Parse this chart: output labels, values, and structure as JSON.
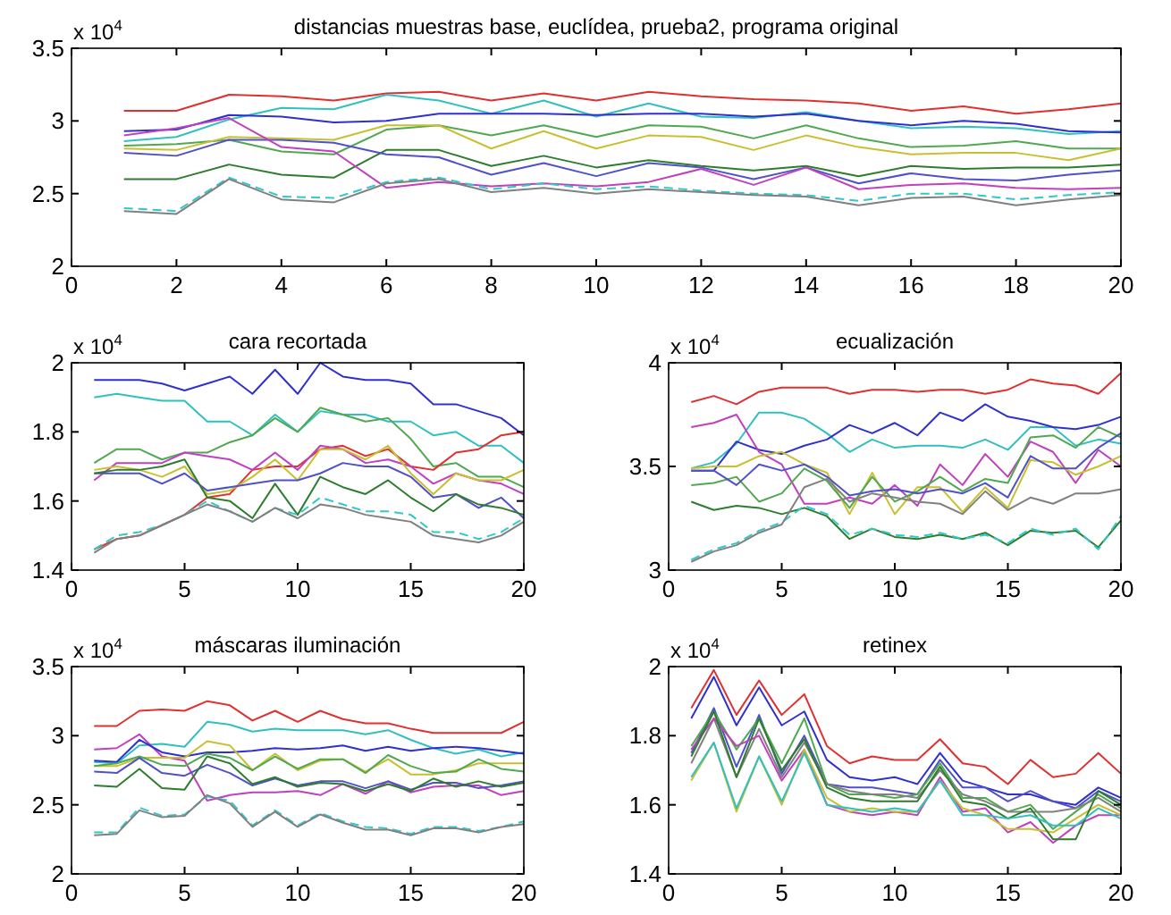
{
  "chart_data": [
    {
      "type": "line",
      "title": "distancias muestras base, euclídea, prueba2, programa original",
      "annotations": [
        "x 10$^{4}$"
      ],
      "x": [
        1,
        2,
        3,
        4,
        5,
        6,
        7,
        8,
        9,
        10,
        11,
        12,
        13,
        14,
        15,
        16,
        17,
        18,
        19,
        20
      ],
      "xlim": [
        0,
        20
      ],
      "xticks": [
        0,
        2,
        4,
        6,
        8,
        10,
        12,
        14,
        16,
        18,
        20
      ],
      "ylim": [
        2,
        3.5
      ],
      "yticks": [
        2,
        2.5,
        3,
        3.5
      ],
      "series": [
        {
          "color": "#e03030",
          "values": [
            3.07,
            3.07,
            3.18,
            3.17,
            3.14,
            3.19,
            3.2,
            3.14,
            3.19,
            3.14,
            3.2,
            3.17,
            3.15,
            3.14,
            3.12,
            3.07,
            3.1,
            3.05,
            3.08,
            3.12
          ]
        },
        {
          "color": "#30c0c0",
          "values": [
            2.86,
            2.89,
            3.01,
            3.09,
            3.08,
            3.18,
            3.14,
            3.05,
            3.14,
            3.03,
            3.12,
            3.03,
            3.02,
            3.06,
            3.0,
            2.95,
            2.96,
            2.95,
            2.91,
            2.93
          ]
        },
        {
          "color": "#3030d0",
          "values": [
            2.93,
            2.94,
            3.04,
            3.03,
            2.99,
            3.0,
            3.05,
            3.05,
            3.05,
            3.04,
            3.05,
            3.05,
            3.03,
            3.05,
            3.0,
            2.97,
            3.0,
            2.98,
            2.93,
            2.92
          ]
        },
        {
          "color": "#50a850",
          "values": [
            2.83,
            2.84,
            2.87,
            2.79,
            2.77,
            2.94,
            2.97,
            2.9,
            2.97,
            2.89,
            2.97,
            2.96,
            2.88,
            2.97,
            2.88,
            2.82,
            2.83,
            2.86,
            2.81,
            2.81
          ]
        },
        {
          "color": "#c8c030",
          "values": [
            2.81,
            2.8,
            2.89,
            2.88,
            2.87,
            2.97,
            2.97,
            2.81,
            2.93,
            2.81,
            2.9,
            2.89,
            2.8,
            2.9,
            2.82,
            2.77,
            2.78,
            2.78,
            2.73,
            2.81
          ]
        },
        {
          "color": "#2e7d2e",
          "values": [
            2.6,
            2.6,
            2.7,
            2.63,
            2.61,
            2.8,
            2.8,
            2.69,
            2.76,
            2.68,
            2.73,
            2.69,
            2.66,
            2.69,
            2.62,
            2.69,
            2.67,
            2.68,
            2.68,
            2.7
          ]
        },
        {
          "color": "#5050c8",
          "values": [
            2.78,
            2.76,
            2.87,
            2.87,
            2.85,
            2.77,
            2.75,
            2.63,
            2.71,
            2.62,
            2.71,
            2.68,
            2.6,
            2.68,
            2.57,
            2.64,
            2.6,
            2.59,
            2.63,
            2.66
          ]
        },
        {
          "color": "#c040c0",
          "values": [
            2.9,
            2.95,
            3.02,
            2.82,
            2.79,
            2.54,
            2.58,
            2.55,
            2.57,
            2.55,
            2.58,
            2.67,
            2.56,
            2.68,
            2.53,
            2.56,
            2.57,
            2.54,
            2.53,
            2.54
          ]
        },
        {
          "color": "#30c8c8",
          "line_style": "dashed",
          "values": [
            2.4,
            2.38,
            2.61,
            2.48,
            2.47,
            2.58,
            2.61,
            2.53,
            2.57,
            2.53,
            2.55,
            2.52,
            2.5,
            2.49,
            2.45,
            2.5,
            2.5,
            2.46,
            2.49,
            2.51
          ]
        },
        {
          "color": "#808080",
          "values": [
            2.38,
            2.36,
            2.6,
            2.46,
            2.44,
            2.57,
            2.6,
            2.51,
            2.54,
            2.5,
            2.53,
            2.51,
            2.49,
            2.48,
            2.42,
            2.47,
            2.48,
            2.42,
            2.46,
            2.49
          ]
        }
      ]
    },
    {
      "type": "line",
      "title": "cara recortada",
      "annotations": [
        "x 10$^{4}$"
      ],
      "x": [
        1,
        2,
        3,
        4,
        5,
        6,
        7,
        8,
        9,
        10,
        11,
        12,
        13,
        14,
        15,
        16,
        17,
        18,
        19,
        20
      ],
      "xlim": [
        0,
        20
      ],
      "xticks": [
        0,
        5,
        10,
        15,
        20
      ],
      "ylim": [
        1.4,
        2
      ],
      "yticks": [
        1.4,
        1.6,
        1.8,
        2
      ],
      "series": [
        {
          "color": "#3030d0",
          "values": [
            1.95,
            1.95,
            1.95,
            1.94,
            1.92,
            1.94,
            1.96,
            1.91,
            1.98,
            1.91,
            2.0,
            1.96,
            1.95,
            1.95,
            1.94,
            1.88,
            1.88,
            1.86,
            1.84,
            1.79
          ]
        },
        {
          "color": "#30c0c0",
          "values": [
            1.9,
            1.91,
            1.9,
            1.89,
            1.89,
            1.83,
            1.83,
            1.79,
            1.85,
            1.8,
            1.86,
            1.85,
            1.85,
            1.83,
            1.83,
            1.79,
            1.8,
            1.76,
            1.76,
            1.71
          ]
        },
        {
          "color": "#50a850",
          "values": [
            1.71,
            1.75,
            1.75,
            1.72,
            1.74,
            1.74,
            1.77,
            1.79,
            1.84,
            1.8,
            1.87,
            1.85,
            1.83,
            1.84,
            1.78,
            1.7,
            1.71,
            1.67,
            1.67,
            1.64
          ]
        },
        {
          "color": "#e03030",
          "values": [
            1.46,
            1.49,
            1.5,
            1.53,
            1.56,
            1.61,
            1.62,
            1.69,
            1.7,
            1.7,
            1.75,
            1.76,
            1.73,
            1.75,
            1.7,
            1.69,
            1.74,
            1.75,
            1.79,
            1.8
          ]
        },
        {
          "color": "#c040c0",
          "values": [
            1.66,
            1.71,
            1.71,
            1.71,
            1.74,
            1.73,
            1.72,
            1.69,
            1.74,
            1.69,
            1.76,
            1.75,
            1.71,
            1.72,
            1.7,
            1.65,
            1.68,
            1.66,
            1.65,
            1.62
          ]
        },
        {
          "color": "#c8c030",
          "values": [
            1.69,
            1.7,
            1.69,
            1.67,
            1.7,
            1.62,
            1.63,
            1.67,
            1.72,
            1.66,
            1.75,
            1.75,
            1.72,
            1.76,
            1.68,
            1.62,
            1.68,
            1.66,
            1.66,
            1.69
          ]
        },
        {
          "color": "#5050c8",
          "values": [
            1.68,
            1.68,
            1.68,
            1.65,
            1.68,
            1.63,
            1.64,
            1.65,
            1.66,
            1.66,
            1.68,
            1.71,
            1.7,
            1.7,
            1.67,
            1.61,
            1.62,
            1.58,
            1.61,
            1.55
          ]
        },
        {
          "color": "#2e7d2e",
          "values": [
            1.68,
            1.69,
            1.69,
            1.7,
            1.72,
            1.61,
            1.6,
            1.55,
            1.65,
            1.56,
            1.67,
            1.64,
            1.62,
            1.66,
            1.61,
            1.57,
            1.62,
            1.59,
            1.58,
            1.56
          ]
        },
        {
          "color": "#30c8c8",
          "line_style": "dashed",
          "values": [
            1.46,
            1.5,
            1.51,
            1.53,
            1.56,
            1.6,
            1.57,
            1.54,
            1.58,
            1.56,
            1.61,
            1.59,
            1.57,
            1.57,
            1.56,
            1.51,
            1.51,
            1.49,
            1.51,
            1.55
          ]
        },
        {
          "color": "#808080",
          "values": [
            1.45,
            1.49,
            1.5,
            1.53,
            1.56,
            1.59,
            1.57,
            1.54,
            1.58,
            1.55,
            1.59,
            1.58,
            1.56,
            1.55,
            1.54,
            1.5,
            1.49,
            1.48,
            1.5,
            1.54
          ]
        }
      ]
    },
    {
      "type": "line",
      "title": "ecualización",
      "annotations": [
        "x 10$^{4}$"
      ],
      "x": [
        1,
        2,
        3,
        4,
        5,
        6,
        7,
        8,
        9,
        10,
        11,
        12,
        13,
        14,
        15,
        16,
        17,
        18,
        19,
        20
      ],
      "xlim": [
        0,
        20
      ],
      "xticks": [
        0,
        5,
        10,
        15,
        20
      ],
      "ylim": [
        3,
        4
      ],
      "yticks": [
        3,
        3.5,
        4
      ],
      "series": [
        {
          "color": "#e03030",
          "values": [
            3.81,
            3.84,
            3.8,
            3.86,
            3.88,
            3.88,
            3.88,
            3.85,
            3.87,
            3.87,
            3.86,
            3.87,
            3.87,
            3.85,
            3.87,
            3.92,
            3.9,
            3.89,
            3.85,
            3.95
          ]
        },
        {
          "color": "#30c0c0",
          "values": [
            3.49,
            3.52,
            3.61,
            3.76,
            3.76,
            3.73,
            3.66,
            3.57,
            3.63,
            3.59,
            3.6,
            3.6,
            3.59,
            3.63,
            3.58,
            3.69,
            3.69,
            3.6,
            3.63,
            3.61
          ]
        },
        {
          "color": "#3030d0",
          "values": [
            3.48,
            3.48,
            3.62,
            3.58,
            3.56,
            3.6,
            3.63,
            3.7,
            3.66,
            3.71,
            3.65,
            3.76,
            3.72,
            3.8,
            3.74,
            3.72,
            3.69,
            3.68,
            3.7,
            3.74
          ]
        },
        {
          "color": "#c040c0",
          "values": [
            3.69,
            3.71,
            3.75,
            3.57,
            3.51,
            3.32,
            3.32,
            3.35,
            3.32,
            3.41,
            3.31,
            3.51,
            3.41,
            3.56,
            3.45,
            3.62,
            3.57,
            3.42,
            3.58,
            3.5
          ]
        },
        {
          "color": "#c8c030",
          "values": [
            3.49,
            3.5,
            3.5,
            3.55,
            3.57,
            3.51,
            3.47,
            3.27,
            3.47,
            3.27,
            3.4,
            3.4,
            3.28,
            3.4,
            3.3,
            3.53,
            3.52,
            3.46,
            3.5,
            3.55
          ]
        },
        {
          "color": "#50a850",
          "values": [
            3.41,
            3.42,
            3.45,
            3.33,
            3.37,
            3.49,
            3.43,
            3.3,
            3.45,
            3.33,
            3.38,
            3.45,
            3.38,
            3.44,
            3.42,
            3.64,
            3.65,
            3.59,
            3.69,
            3.64
          ]
        },
        {
          "color": "#5050c8",
          "values": [
            3.48,
            3.48,
            3.41,
            3.51,
            3.48,
            3.51,
            3.45,
            3.36,
            3.38,
            3.39,
            3.37,
            3.39,
            3.37,
            3.42,
            3.35,
            3.55,
            3.49,
            3.49,
            3.59,
            3.66
          ]
        },
        {
          "color": "#2e7d2e",
          "values": [
            3.33,
            3.29,
            3.31,
            3.3,
            3.27,
            3.3,
            3.26,
            3.15,
            3.2,
            3.16,
            3.15,
            3.17,
            3.15,
            3.18,
            3.12,
            3.19,
            3.18,
            3.19,
            3.11,
            3.24
          ]
        },
        {
          "color": "#30c8c8",
          "line_style": "dashed",
          "values": [
            3.05,
            3.1,
            3.13,
            3.19,
            3.23,
            3.31,
            3.27,
            3.17,
            3.2,
            3.17,
            3.16,
            3.18,
            3.15,
            3.17,
            3.13,
            3.2,
            3.17,
            3.2,
            3.1,
            3.26
          ]
        },
        {
          "color": "#808080",
          "values": [
            3.04,
            3.09,
            3.12,
            3.18,
            3.22,
            3.4,
            3.44,
            3.33,
            3.37,
            3.35,
            3.33,
            3.32,
            3.27,
            3.38,
            3.29,
            3.35,
            3.32,
            3.37,
            3.37,
            3.39
          ]
        }
      ]
    },
    {
      "type": "line",
      "title": "máscaras iluminación",
      "annotations": [
        "x 10$^{4}$"
      ],
      "x": [
        1,
        2,
        3,
        4,
        5,
        6,
        7,
        8,
        9,
        10,
        11,
        12,
        13,
        14,
        15,
        16,
        17,
        18,
        19,
        20
      ],
      "xlim": [
        0,
        20
      ],
      "xticks": [
        0,
        5,
        10,
        15,
        20
      ],
      "ylim": [
        2,
        3.5
      ],
      "yticks": [
        2,
        2.5,
        3,
        3.5
      ],
      "series": [
        {
          "color": "#e03030",
          "values": [
            3.07,
            3.07,
            3.18,
            3.19,
            3.18,
            3.25,
            3.22,
            3.11,
            3.18,
            3.1,
            3.18,
            3.12,
            3.09,
            3.09,
            3.05,
            3.02,
            3.02,
            3.02,
            3.02,
            3.1
          ]
        },
        {
          "color": "#30c0c0",
          "values": [
            2.81,
            2.8,
            2.93,
            2.94,
            2.92,
            3.1,
            3.08,
            3.03,
            3.05,
            3.04,
            3.04,
            3.04,
            3.01,
            3.04,
            2.97,
            2.91,
            2.87,
            2.9,
            2.85,
            2.88
          ]
        },
        {
          "color": "#c040c0",
          "values": [
            2.9,
            2.91,
            3.01,
            2.85,
            2.82,
            2.53,
            2.57,
            2.59,
            2.59,
            2.6,
            2.57,
            2.65,
            2.58,
            2.67,
            2.59,
            2.63,
            2.64,
            2.64,
            2.57,
            2.6
          ]
        },
        {
          "color": "#3030d0",
          "values": [
            2.82,
            2.81,
            2.97,
            2.88,
            2.85,
            2.88,
            2.88,
            2.89,
            2.91,
            2.9,
            2.91,
            2.93,
            2.89,
            2.92,
            2.89,
            2.91,
            2.92,
            2.91,
            2.89,
            2.87
          ]
        },
        {
          "color": "#c8c030",
          "values": [
            2.78,
            2.78,
            2.84,
            2.84,
            2.84,
            2.96,
            2.93,
            2.75,
            2.87,
            2.75,
            2.82,
            2.83,
            2.74,
            2.83,
            2.72,
            2.72,
            2.75,
            2.8,
            2.8,
            2.8
          ]
        },
        {
          "color": "#50a850",
          "values": [
            2.78,
            2.8,
            2.85,
            2.79,
            2.78,
            2.87,
            2.84,
            2.75,
            2.85,
            2.76,
            2.83,
            2.83,
            2.73,
            2.86,
            2.78,
            2.73,
            2.74,
            2.83,
            2.76,
            2.74
          ]
        },
        {
          "color": "#5050c8",
          "values": [
            2.74,
            2.73,
            2.84,
            2.73,
            2.71,
            2.79,
            2.73,
            2.64,
            2.69,
            2.64,
            2.67,
            2.67,
            2.62,
            2.67,
            2.61,
            2.66,
            2.66,
            2.62,
            2.64,
            2.67
          ]
        },
        {
          "color": "#2e7d2e",
          "values": [
            2.64,
            2.63,
            2.76,
            2.62,
            2.61,
            2.85,
            2.8,
            2.65,
            2.7,
            2.63,
            2.66,
            2.65,
            2.6,
            2.65,
            2.6,
            2.69,
            2.63,
            2.67,
            2.63,
            2.66
          ]
        },
        {
          "color": "#30c8c8",
          "line_style": "dashed",
          "values": [
            2.3,
            2.3,
            2.48,
            2.42,
            2.43,
            2.56,
            2.53,
            2.35,
            2.46,
            2.35,
            2.44,
            2.38,
            2.34,
            2.33,
            2.29,
            2.34,
            2.34,
            2.31,
            2.34,
            2.38
          ]
        },
        {
          "color": "#808080",
          "values": [
            2.28,
            2.29,
            2.46,
            2.41,
            2.42,
            2.57,
            2.51,
            2.34,
            2.45,
            2.34,
            2.43,
            2.37,
            2.32,
            2.32,
            2.28,
            2.33,
            2.33,
            2.3,
            2.34,
            2.36
          ]
        }
      ]
    },
    {
      "type": "line",
      "title": "retinex",
      "annotations": [
        "x 10$^{4}$"
      ],
      "x": [
        1,
        2,
        3,
        4,
        5,
        6,
        7,
        8,
        9,
        10,
        11,
        12,
        13,
        14,
        15,
        16,
        17,
        18,
        19,
        20
      ],
      "xlim": [
        0,
        20
      ],
      "xticks": [
        0,
        5,
        10,
        15,
        20
      ],
      "ylim": [
        1.4,
        2
      ],
      "yticks": [
        1.4,
        1.6,
        1.8,
        2
      ],
      "series": [
        {
          "color": "#e03030",
          "values": [
            1.88,
            1.99,
            1.86,
            1.96,
            1.86,
            1.92,
            1.77,
            1.72,
            1.74,
            1.73,
            1.73,
            1.79,
            1.72,
            1.71,
            1.66,
            1.73,
            1.68,
            1.69,
            1.75,
            1.69
          ]
        },
        {
          "color": "#3030d0",
          "values": [
            1.85,
            1.97,
            1.83,
            1.94,
            1.83,
            1.87,
            1.73,
            1.68,
            1.67,
            1.68,
            1.66,
            1.75,
            1.67,
            1.65,
            1.63,
            1.63,
            1.61,
            1.6,
            1.65,
            1.62
          ]
        },
        {
          "color": "#5050c8",
          "values": [
            1.75,
            1.88,
            1.71,
            1.86,
            1.69,
            1.8,
            1.66,
            1.65,
            1.65,
            1.64,
            1.63,
            1.73,
            1.65,
            1.65,
            1.61,
            1.64,
            1.61,
            1.59,
            1.64,
            1.61
          ]
        },
        {
          "color": "#50a850",
          "values": [
            1.77,
            1.87,
            1.76,
            1.85,
            1.72,
            1.85,
            1.66,
            1.63,
            1.63,
            1.62,
            1.63,
            1.72,
            1.62,
            1.62,
            1.58,
            1.6,
            1.53,
            1.58,
            1.63,
            1.59
          ]
        },
        {
          "color": "#808080",
          "values": [
            1.72,
            1.85,
            1.68,
            1.82,
            1.68,
            1.78,
            1.66,
            1.64,
            1.63,
            1.63,
            1.62,
            1.7,
            1.63,
            1.61,
            1.58,
            1.58,
            1.58,
            1.59,
            1.62,
            1.58
          ]
        },
        {
          "color": "#c040c0",
          "values": [
            1.76,
            1.85,
            1.77,
            1.8,
            1.67,
            1.76,
            1.6,
            1.58,
            1.57,
            1.58,
            1.57,
            1.68,
            1.58,
            1.59,
            1.52,
            1.55,
            1.49,
            1.54,
            1.57,
            1.57
          ]
        },
        {
          "color": "#c8c030",
          "values": [
            1.67,
            1.78,
            1.58,
            1.74,
            1.6,
            1.76,
            1.62,
            1.58,
            1.59,
            1.58,
            1.58,
            1.67,
            1.59,
            1.57,
            1.53,
            1.53,
            1.52,
            1.56,
            1.6,
            1.57
          ]
        },
        {
          "color": "#2e7d2e",
          "values": [
            1.74,
            1.87,
            1.68,
            1.85,
            1.7,
            1.79,
            1.65,
            1.62,
            1.61,
            1.61,
            1.61,
            1.71,
            1.61,
            1.6,
            1.56,
            1.59,
            1.5,
            1.5,
            1.64,
            1.6
          ]
        },
        {
          "color": "#30c0c0",
          "values": [
            1.68,
            1.78,
            1.59,
            1.74,
            1.61,
            1.75,
            1.6,
            1.59,
            1.58,
            1.59,
            1.58,
            1.67,
            1.57,
            1.57,
            1.56,
            1.57,
            1.54,
            1.54,
            1.59,
            1.56
          ]
        }
      ]
    }
  ]
}
